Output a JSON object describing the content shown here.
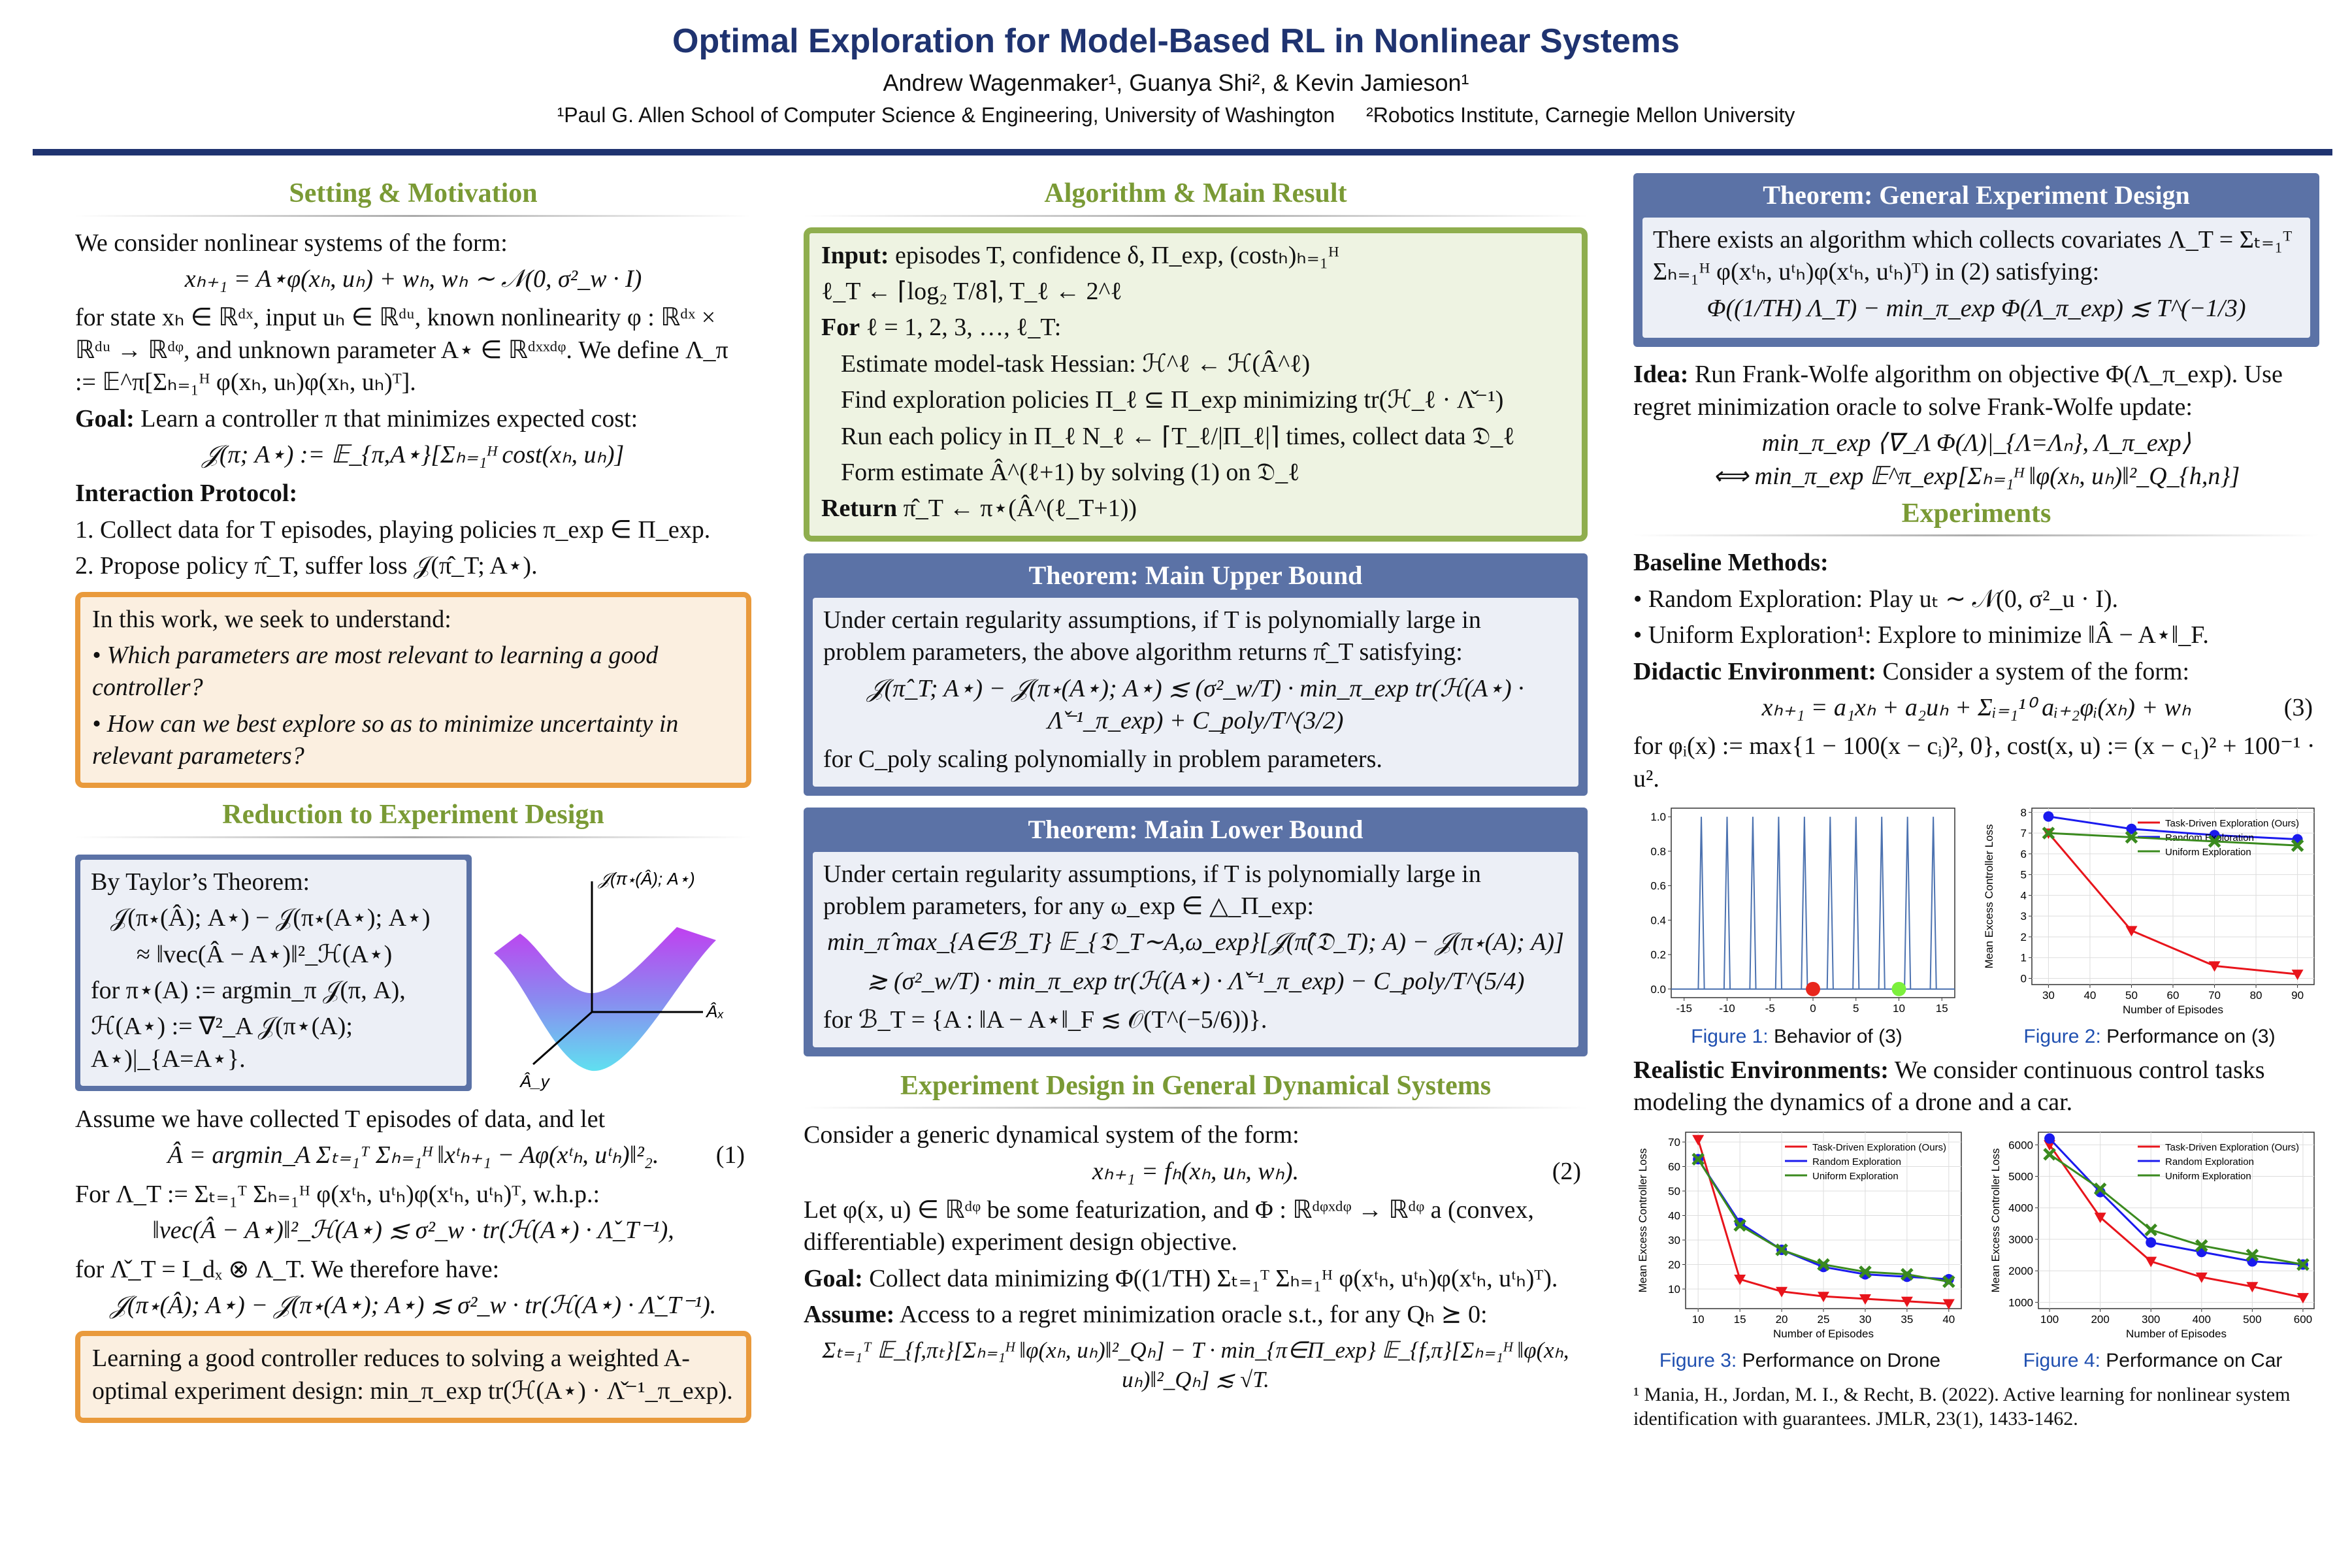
{
  "header": {
    "title": "Optimal Exploration for Model-Based RL in Nonlinear Systems",
    "authors": "Andrew Wagenmaker¹, Guanya Shi², & Kevin Jamieson¹",
    "affiliations": [
      "¹Paul G. Allen School of Computer Science & Engineering, University of Washington",
      "²Robotics Institute, Carnegie Mellon University"
    ]
  },
  "setting": {
    "heading": "Setting & Motivation",
    "intro": "We consider nonlinear systems of the form:",
    "equation": "xₕ₊₁ = A⋆φ(xₕ, uₕ) + wₕ,    wₕ ∼ 𝒩(0, σ²_w · I)",
    "definitions": "for state xₕ ∈ ℝᵈˣ, input uₕ ∈ ℝᵈᵘ, known nonlinearity φ : ℝᵈˣ × ℝᵈᵘ → ℝᵈᵠ, and unknown parameter A⋆ ∈ ℝᵈˣˣᵈᵠ. We define Λ_π := 𝔼^π[Σₕ₌₁ᴴ φ(xₕ, uₕ)φ(xₕ, uₕ)ᵀ].",
    "goal": {
      "label": "Goal:",
      "text": "Learn a controller π that minimizes expected cost:"
    },
    "cost_equation": "𝒥(π; A⋆) := 𝔼_{π,A⋆}[Σₕ₌₁ᴴ cost(xₕ, uₕ)]",
    "protocol": {
      "heading": "Interaction Protocol:",
      "steps": [
        "1. Collect data for T episodes, playing policies π_exp ∈ Π_exp.",
        "2. Propose policy π̂_T, suffer loss 𝒥(π̂_T; A⋆)."
      ]
    },
    "question_box": {
      "intro": "In this work, we seek to understand:",
      "questions": [
        "• Which parameters are most relevant to learning a good controller?",
        "• How can we best explore so as to minimize uncertainty in relevant parameters?"
      ]
    }
  },
  "reduction": {
    "heading": "Reduction to Experiment Design",
    "taylor": [
      "By Taylor’s Theorem:",
      "𝒥(π⋆(Â); A⋆) − 𝒥(π⋆(A⋆); A⋆)",
      "≈ ‖vec(Â − A⋆)‖²_ℋ(A⋆)",
      "for π⋆(A) := argmin_π 𝒥(π, A),",
      "ℋ(A⋆) := ∇²_A 𝒥(π⋆(A); A⋆)|_{A=A⋆}."
    ],
    "plot_labels": {
      "z": "𝒥(π⋆(Â); A⋆)",
      "x": "Âₓ",
      "y": "Â_y"
    },
    "assume": "Assume we have collected T episodes of data, and let",
    "estimator": "Â = argmin_A Σₜ₌₁ᵀ Σₕ₌₁ᴴ ‖xᵗₕ₊₁ − Aφ(xᵗₕ, uᵗₕ)‖²₂.",
    "estimator_number": "(1)",
    "covariates": "For Λ_T := Σₜ₌₁ᵀ Σₕ₌₁ᴴ φ(xᵗₕ, uᵗₕ)φ(xᵗₕ, uᵗₕ)ᵀ, w.h.p.:",
    "bound": "‖vec(Â − A⋆)‖²_ℋ(A⋆) ≲ σ²_w · tr(ℋ(A⋆) · Λ̌_T⁻¹),",
    "kron": "for Λ̌_T = I_dₓ ⊗ Λ_T. We therefore have:",
    "final": "𝒥(π⋆(Â); A⋆) − 𝒥(π⋆(A⋆); A⋆) ≲ σ²_w · tr(ℋ(A⋆) · Λ̌_T⁻¹).",
    "conclusion": "Learning a good controller reduces to solving a weighted A-optimal experiment design: min_π_exp tr(ℋ(A⋆) · Λ̌⁻¹_π_exp)."
  },
  "algorithm": {
    "heading": "Algorithm & Main Result",
    "input": {
      "label": "Input:",
      "text": "episodes T, confidence δ, Π_exp, (costₕ)ₕ₌₁ᴴ"
    },
    "init": "ℓ_T ← ⌈log₂ T/8⌉, T_ℓ ← 2^ℓ",
    "loop": {
      "label": "For",
      "text": "ℓ = 1, 2, 3, …, ℓ_T:"
    },
    "steps": [
      "Estimate model-task Hessian: ℋ^ℓ ← ℋ(Â^ℓ)",
      "Find exploration policies Π_ℓ ⊆ Π_exp minimizing tr(ℋ_ℓ · Λ̌⁻¹)",
      "Run each policy in Π_ℓ N_ℓ ← ⌈T_ℓ/|Π_ℓ|⌉ times, collect data 𝔇_ℓ",
      "Form estimate Â^(ℓ+1) by solving (1) on 𝔇_ℓ"
    ],
    "return": {
      "label": "Return",
      "text": "π̂_T ← π⋆(Â^(ℓ_T+1))"
    }
  },
  "upper_bound": {
    "title": "Theorem: Main Upper Bound",
    "text": "Under certain regularity assumptions, if T is polynomially large in problem parameters, the above algorithm returns π̂_T satisfying:",
    "equation": "𝒥(π̂_T; A⋆) − 𝒥(π⋆(A⋆); A⋆) ≲ (σ²_w/T) · min_π_exp tr(ℋ(A⋆) · Λ̌⁻¹_π_exp) + C_poly/T^(3/2)",
    "after": "for C_poly scaling polynomially in problem parameters."
  },
  "lower_bound": {
    "title": "Theorem: Main Lower Bound",
    "text": "Under certain regularity assumptions, if T is polynomially large in problem parameters, for any ω_exp ∈ △_Π_exp:",
    "equations": [
      "min_π̂ max_{A∈ℬ_T} 𝔼_{𝔇_T∼A,ω_exp}[𝒥(π̂(𝔇_T); A) − 𝒥(π⋆(A); A)]",
      "≳ (σ²_w/T) · min_π_exp tr(ℋ(A⋆) · Λ̌⁻¹_π_exp) − C_poly/T^(5/4)"
    ],
    "after": "for ℬ_T = {A : ‖A − A⋆‖_F ≲ 𝒪(T^(−5/6))}."
  },
  "general": {
    "heading": "Experiment Design in General Dynamical Systems",
    "intro": "Consider a generic dynamical system of the form:",
    "equation": "xₕ₊₁ = fₕ(xₕ, uₕ, wₕ).",
    "equation_number": "(2)",
    "featurization": "Let φ(x, u) ∈ ℝᵈᵠ be some featurization, and Φ : ℝᵈᵠˣᵈᵠ → ℝᵈᵠ a (convex, differentiable) experiment design objective.",
    "goal": {
      "label": "Goal:",
      "text": "Collect data minimizing Φ((1/TH) Σₜ₌₁ᵀ Σₕ₌₁ᴴ φ(xᵗₕ, uᵗₕ)φ(xᵗₕ, uᵗₕ)ᵀ)."
    },
    "assume": {
      "label": "Assume:",
      "text": "Access to a regret minimization oracle s.t., for any Qₕ ⪰ 0:"
    },
    "oracle": "Σₜ₌₁ᵀ 𝔼_{f,πₜ}[Σₕ₌₁ᴴ ‖φ(xₕ, uₕ)‖²_Qₕ] − T · min_{π∈Π_exp} 𝔼_{f,π}[Σₕ₌₁ᴴ ‖φ(xₕ, uₕ)‖²_Qₕ] ≲ √T."
  },
  "general_theorem": {
    "title": "Theorem: General Experiment Design",
    "text": "There exists an algorithm which collects covariates Λ_T = Σₜ₌₁ᵀ Σₕ₌₁ᴴ φ(xᵗₕ, uᵗₕ)φ(xᵗₕ, uᵗₕ)ᵀ) in (2) satisfying:",
    "equation": "Φ((1/TH) Λ_T) − min_π_exp Φ(Λ_π_exp) ≲ T^(−1/3)"
  },
  "idea": {
    "label": "Idea:",
    "text": "Run Frank-Wolfe algorithm on objective Φ(Λ_π_exp). Use regret minimization oracle to solve Frank-Wolfe update:",
    "equations": [
      "min_π_exp ⟨∇_Λ Φ(Λ)|_{Λ=Λₙ}, Λ_π_exp⟩",
      "⟺ min_π_exp 𝔼^π_exp[Σₕ₌₁ᴴ ‖φ(xₕ, uₕ)‖²_Q_{h,n}]"
    ]
  },
  "experiments": {
    "heading": "Experiments",
    "baseline_heading": "Baseline Methods:",
    "baselines": [
      "• Random Exploration: Play uₜ ∼ 𝒩(0, σ²_u · I).",
      "• Uniform Exploration¹: Explore to minimize ‖Â − A⋆‖_F."
    ],
    "didactic": {
      "label": "Didactic Environment:",
      "text": "Consider a system of the form:"
    },
    "didactic_equation": "xₕ₊₁ = a₁xₕ + a₂uₕ + Σᵢ₌₁¹⁰ aᵢ₊₂φᵢ(xₕ) + wₕ",
    "didactic_number": "(3)",
    "didactic_definition": "for φᵢ(x) := max{1 − 100(x − cᵢ)², 0}, cost(x, u) := (x − c₁)² + 100⁻¹ · u².",
    "realistic": {
      "label": "Realistic Environments:",
      "text": "We consider continuous control tasks modeling the dynamics of a drone and a car."
    }
  },
  "figures": [
    {
      "caption": {
        "number": "Figure 1:",
        "text": "Behavior of (3)"
      },
      "x": [
        -13,
        -10,
        -7,
        -4,
        -1,
        2,
        5,
        8,
        11,
        14
      ],
      "values": [
        1.0,
        1.0,
        1.0,
        1.0,
        1.0,
        1.0,
        1.0,
        1.0,
        1.0,
        1.0
      ],
      "color": "#4c72b0",
      "points": [
        {
          "x": 0,
          "y": 0,
          "color": "#e8261c"
        },
        {
          "x": 10,
          "y": 0,
          "color": "#7cf03c"
        }
      ],
      "xlim": [
        -16.5,
        16.5
      ],
      "ylim": [
        -0.05,
        1.05
      ],
      "xticks": [
        -15,
        -10,
        -5,
        0,
        5,
        10,
        15
      ],
      "yticks": [
        {
          "value": 0,
          "label": "0.0"
        },
        {
          "value": 0.2,
          "label": "0.2"
        },
        {
          "value": 0.4,
          "label": "0.4"
        },
        {
          "value": 0.6,
          "label": "0.6"
        },
        {
          "value": 0.8,
          "label": "0.8"
        },
        {
          "value": 1.0,
          "label": "1.0"
        }
      ]
    },
    {
      "caption": {
        "number": "Figure 2:",
        "text": "Performance on (3)"
      },
      "xlabel": "Number of Episodes",
      "ylabel": "Mean Excess Controller Loss",
      "x": [
        30,
        50,
        70,
        90
      ],
      "series": [
        {
          "name": "Task-Driven Exploration (Ours)",
          "color": "#e8141b",
          "values": [
            7.0,
            2.3,
            0.6,
            0.2
          ]
        },
        {
          "name": "Random Exploration",
          "color": "#1a1aee",
          "values": [
            7.8,
            7.2,
            6.9,
            6.7
          ]
        },
        {
          "name": "Uniform Exploration",
          "color": "#3a8a1e",
          "values": [
            7.0,
            6.8,
            6.6,
            6.4
          ]
        }
      ],
      "xlim": [
        26,
        94
      ],
      "ylim": [
        -0.3,
        8.2
      ],
      "xticks": [
        30,
        40,
        50,
        60,
        70,
        80,
        90
      ],
      "yticks": [
        0,
        1,
        2,
        3,
        4,
        5,
        6,
        7,
        8
      ],
      "grid": true
    },
    {
      "caption": {
        "number": "Figure 3:",
        "text": "Performance on Drone"
      },
      "xlabel": "Number of Episodes",
      "ylabel": "Mean Excess Controller Loss",
      "x": [
        10,
        15,
        20,
        25,
        30,
        35,
        40
      ],
      "series": [
        {
          "name": "Task-Driven Exploration (Ours)",
          "color": "#e8141b",
          "values": [
            71,
            14,
            9,
            7,
            6,
            5,
            4
          ]
        },
        {
          "name": "Random Exploration",
          "color": "#1a1aee",
          "values": [
            63,
            37,
            26,
            19,
            16,
            15,
            14
          ]
        },
        {
          "name": "Uniform Exploration",
          "color": "#3a8a1e",
          "values": [
            63,
            36,
            26,
            20,
            17,
            16,
            13
          ]
        }
      ],
      "xlim": [
        8.5,
        41.5
      ],
      "ylim": [
        2,
        74
      ],
      "xticks": [
        10,
        15,
        20,
        25,
        30,
        35,
        40
      ],
      "yticks": [
        10,
        20,
        30,
        40,
        50,
        60,
        70
      ],
      "grid": true
    },
    {
      "caption": {
        "number": "Figure 4:",
        "text": "Performance on Car"
      },
      "xlabel": "Number of Episodes",
      "ylabel": "Mean Excess Controller Loss",
      "x": [
        100,
        200,
        300,
        400,
        500,
        600
      ],
      "series": [
        {
          "name": "Task-Driven Exploration (Ours)",
          "color": "#e8141b",
          "values": [
            6000,
            3700,
            2300,
            1800,
            1500,
            1150
          ]
        },
        {
          "name": "Random Exploration",
          "color": "#1a1aee",
          "values": [
            6200,
            4500,
            2900,
            2600,
            2300,
            2200
          ]
        },
        {
          "name": "Uniform Exploration",
          "color": "#3a8a1e",
          "values": [
            5700,
            4600,
            3300,
            2800,
            2500,
            2200
          ]
        }
      ],
      "xlim": [
        78,
        622
      ],
      "ylim": [
        800,
        6400
      ],
      "xticks": [
        100,
        200,
        300,
        400,
        500,
        600
      ],
      "yticks": [
        1000,
        2000,
        3000,
        4000,
        5000,
        6000
      ],
      "grid": true
    }
  ],
  "footnote": "¹ Mania, H., Jordan, M. I., & Recht, B. (2022). Active learning for nonlinear system identification with guarantees. JMLR, 23(1), 1433-1462."
}
